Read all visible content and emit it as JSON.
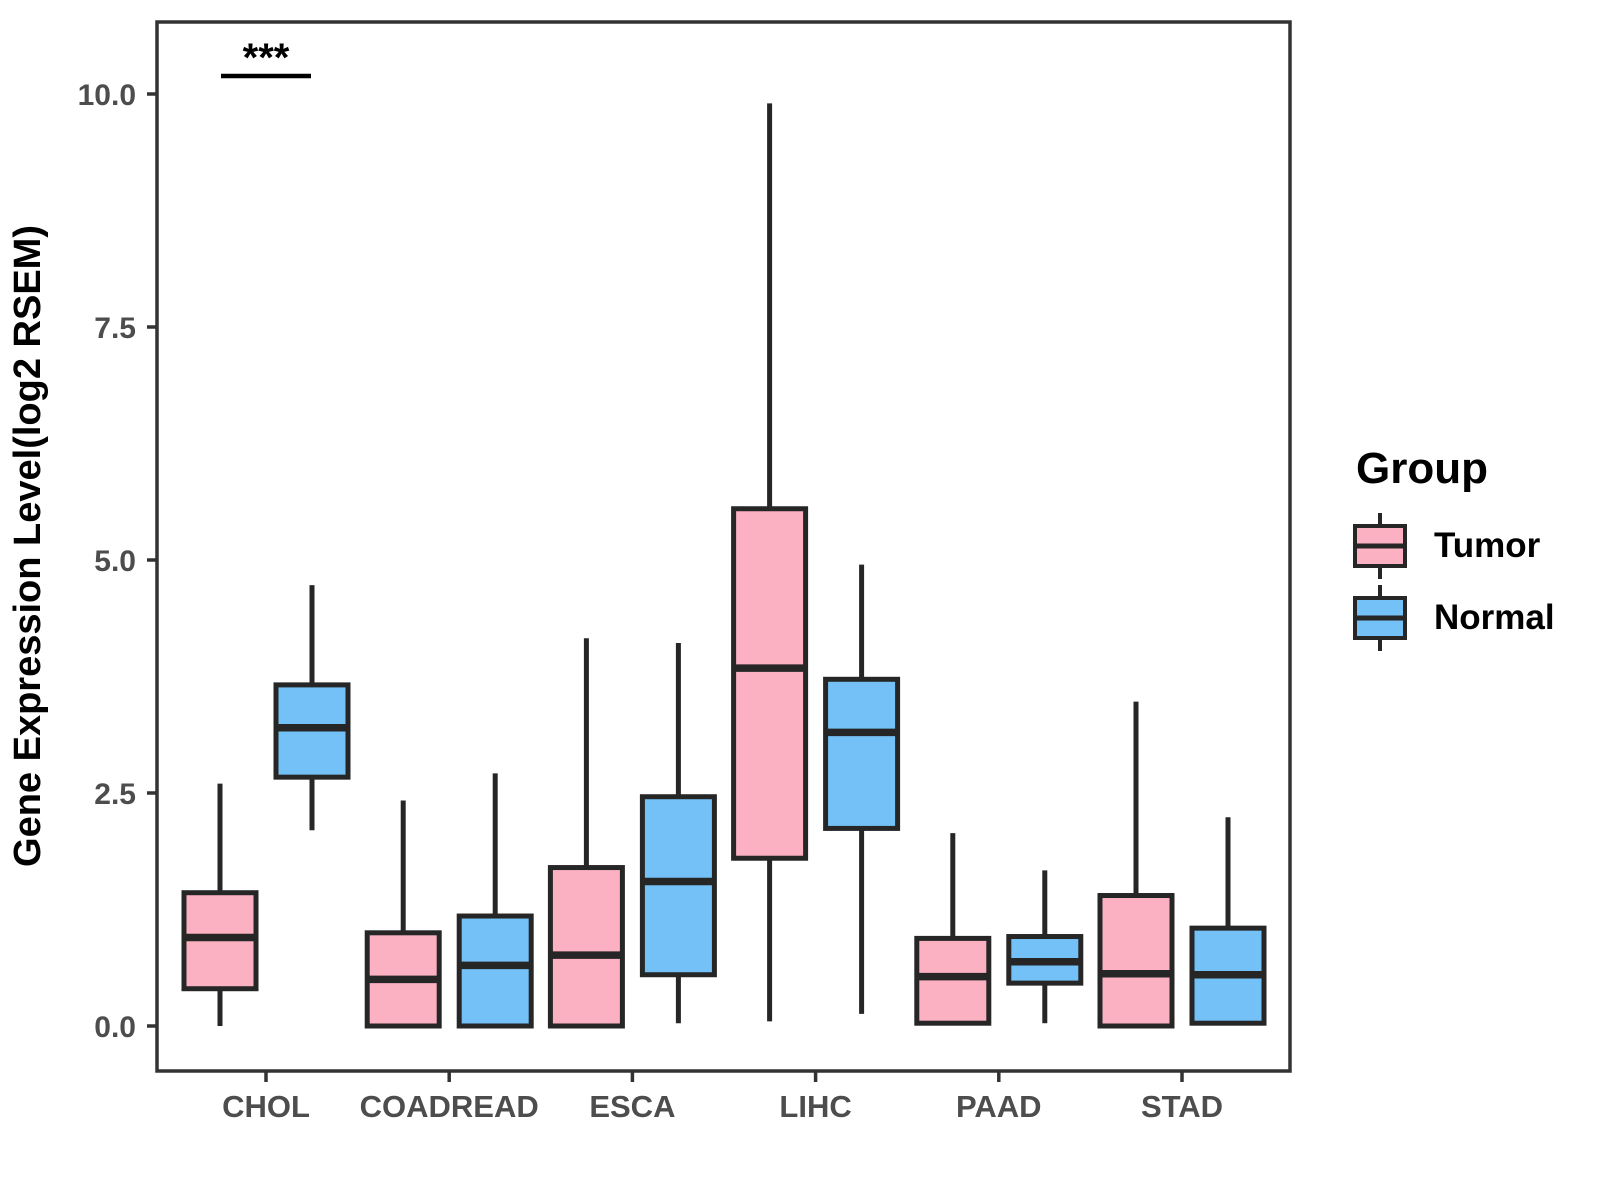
{
  "colors": {
    "tumor_fill": "#FBB1C2",
    "normal_fill": "#73C1F7",
    "box_border": "#262626",
    "panel_frame": "#333333",
    "tick_text": "#4D4D4D",
    "label_text": "#000000",
    "background": "#FFFFFF"
  },
  "chart_data": {
    "type": "boxplot",
    "title": "",
    "xlabel": "",
    "ylabel": "Gene Expression Level(log2 RSEM)",
    "grid": "off",
    "categories": [
      "CHOL",
      "COADREAD",
      "ESCA",
      "LIHC",
      "PAAD",
      "STAD"
    ],
    "yticks": [
      {
        "label": "0.0",
        "value": 0
      },
      {
        "label": "2.5",
        "value": 2.5
      },
      {
        "label": "5.0",
        "value": 5
      },
      {
        "label": "7.5",
        "value": 7.5
      },
      {
        "label": "10.0",
        "value": 10
      }
    ],
    "ylim": [
      -0.5,
      10.8
    ],
    "legend": {
      "title": "Group",
      "position": "right",
      "entries": [
        {
          "label": "Tumor",
          "color": "#FBB1C2"
        },
        {
          "label": "Normal",
          "color": "#73C1F7"
        }
      ]
    },
    "series": [
      {
        "name": "Tumor",
        "color": "#FBB1C2",
        "stats": [
          {
            "category": "CHOL",
            "low": 0.0,
            "q1": 0.4,
            "median": 0.95,
            "q3": 1.43,
            "high": 2.6
          },
          {
            "category": "COADREAD",
            "low": 0.0,
            "q1": 0.0,
            "median": 0.5,
            "q3": 1.0,
            "high": 2.42
          },
          {
            "category": "ESCA",
            "low": 0.0,
            "q1": 0.0,
            "median": 0.76,
            "q3": 1.7,
            "high": 4.16
          },
          {
            "category": "LIHC",
            "low": 0.05,
            "q1": 1.8,
            "median": 3.84,
            "q3": 5.55,
            "high": 9.9
          },
          {
            "category": "PAAD",
            "low": 0.03,
            "q1": 0.03,
            "median": 0.53,
            "q3": 0.94,
            "high": 2.07
          },
          {
            "category": "STAD",
            "low": 0.0,
            "q1": 0.0,
            "median": 0.56,
            "q3": 1.4,
            "high": 3.48
          }
        ]
      },
      {
        "name": "Normal",
        "color": "#73C1F7",
        "stats": [
          {
            "category": "CHOL",
            "low": 2.1,
            "q1": 2.67,
            "median": 3.2,
            "q3": 3.66,
            "high": 4.73
          },
          {
            "category": "COADREAD",
            "low": 0.0,
            "q1": 0.0,
            "median": 0.65,
            "q3": 1.18,
            "high": 2.71
          },
          {
            "category": "ESCA",
            "low": 0.03,
            "q1": 0.55,
            "median": 1.55,
            "q3": 2.46,
            "high": 4.11
          },
          {
            "category": "LIHC",
            "low": 0.13,
            "q1": 2.12,
            "median": 3.15,
            "q3": 3.72,
            "high": 4.95
          },
          {
            "category": "PAAD",
            "low": 0.03,
            "q1": 0.46,
            "median": 0.69,
            "q3": 0.96,
            "high": 1.67
          },
          {
            "category": "STAD",
            "low": 0.03,
            "q1": 0.03,
            "median": 0.55,
            "q3": 1.05,
            "high": 2.24
          }
        ]
      }
    ],
    "significance": [
      {
        "category": "CHOL",
        "label": "***"
      }
    ]
  }
}
